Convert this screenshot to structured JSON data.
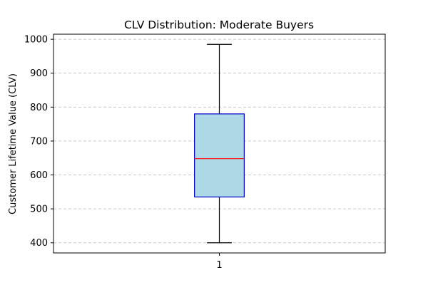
{
  "chart_data": {
    "type": "box",
    "title": "CLV Distribution: Moderate Buyers",
    "xlabel": "",
    "ylabel": "Customer Lifetime Value (CLV)",
    "ylim": [
      370,
      1015
    ],
    "yticks": [
      400,
      500,
      600,
      700,
      800,
      900,
      1000
    ],
    "ytick_labels": [
      "400",
      "500",
      "600",
      "700",
      "800",
      "900",
      "1000"
    ],
    "categories": [
      "1"
    ],
    "grid": {
      "y": true,
      "style": "dashed"
    },
    "boxes": [
      {
        "label": "1",
        "whisker_low": 400,
        "q1": 535,
        "median": 648,
        "q3": 780,
        "whisker_high": 985
      }
    ],
    "colors": {
      "box_fill": "#add8e6",
      "box_edge": "#0000cc",
      "median": "#ff0000",
      "whisker": "#000000",
      "grid": "#c8c8c8"
    }
  }
}
